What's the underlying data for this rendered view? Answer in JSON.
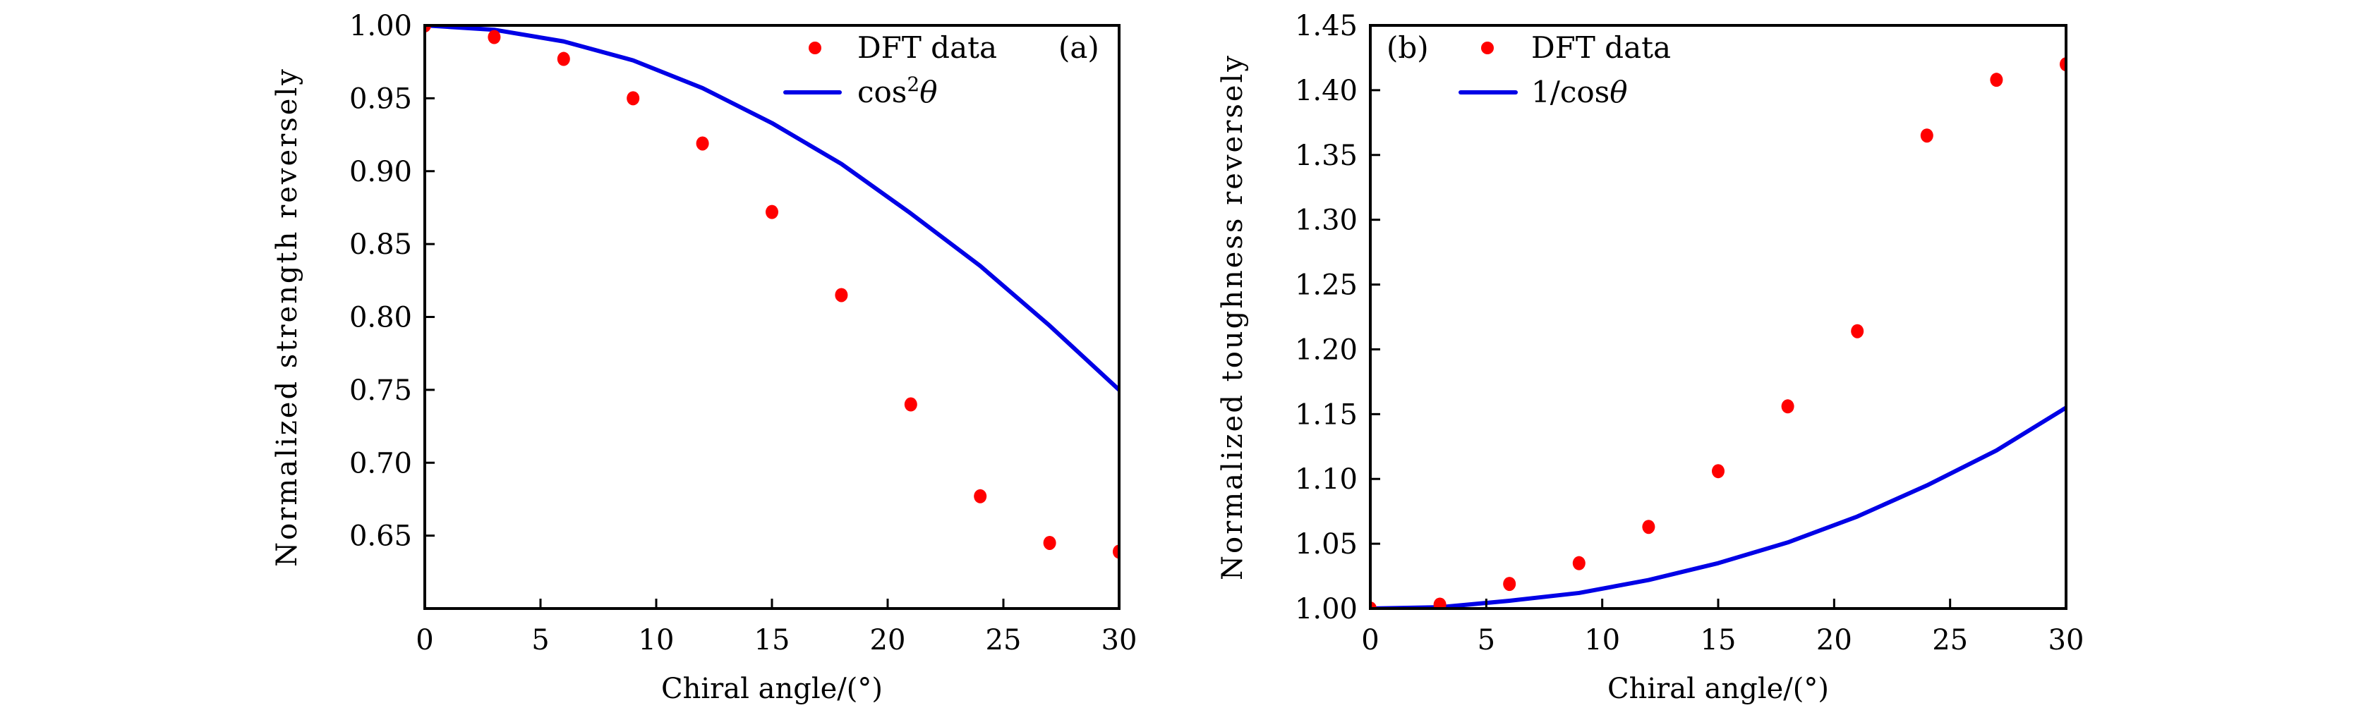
{
  "chart_data": [
    {
      "type": "scatter",
      "panel_label": "(a)",
      "xlabel": "Chiral angle/(°)",
      "ylabel": "Normalized strength reversely",
      "xlim": [
        0,
        30
      ],
      "ylim": [
        0.6,
        1.0
      ],
      "xticks": [
        0,
        5,
        10,
        15,
        20,
        25,
        30
      ],
      "xtick_labels": [
        "0",
        "5",
        "10",
        "15",
        "20",
        "25",
        "30"
      ],
      "yticks": [
        0.65,
        0.7,
        0.75,
        0.8,
        0.85,
        0.9,
        0.95,
        1.0
      ],
      "ytick_labels": [
        "0.65",
        "0.70",
        "0.75",
        "0.80",
        "0.85",
        "0.90",
        "0.95",
        "1.00"
      ],
      "grid": false,
      "legend_position": "top-right",
      "series": [
        {
          "name": "DFT data",
          "kind": "scatter",
          "color": "#ff0000",
          "x": [
            0,
            3,
            6,
            9,
            12,
            15,
            18,
            21,
            24,
            27,
            30
          ],
          "y": [
            1.0,
            0.992,
            0.977,
            0.95,
            0.919,
            0.872,
            0.815,
            0.74,
            0.677,
            0.645,
            0.639
          ]
        },
        {
          "name": "cos²θ",
          "legend_main": "cos",
          "legend_sup": "2",
          "legend_var": "θ",
          "kind": "line",
          "color": "#0000e6",
          "x": [
            0,
            3,
            6,
            9,
            12,
            15,
            18,
            21,
            24,
            27,
            30
          ],
          "y": [
            1.0,
            0.997,
            0.989,
            0.976,
            0.957,
            0.933,
            0.905,
            0.871,
            0.835,
            0.794,
            0.75
          ]
        }
      ]
    },
    {
      "type": "scatter",
      "panel_label": "(b)",
      "xlabel": "Chiral angle/(°)",
      "ylabel": "Normalized toughness reversely",
      "xlim": [
        0,
        30
      ],
      "ylim": [
        1.0,
        1.45
      ],
      "xticks": [
        0,
        5,
        10,
        15,
        20,
        25,
        30
      ],
      "xtick_labels": [
        "0",
        "5",
        "10",
        "15",
        "20",
        "25",
        "30"
      ],
      "yticks": [
        1.0,
        1.05,
        1.1,
        1.15,
        1.2,
        1.25,
        1.3,
        1.35,
        1.4,
        1.45
      ],
      "ytick_labels": [
        "1.00",
        "1.05",
        "1.10",
        "1.15",
        "1.20",
        "1.25",
        "1.30",
        "1.35",
        "1.40",
        "1.45"
      ],
      "grid": false,
      "legend_position": "top-left",
      "series": [
        {
          "name": "DFT data",
          "kind": "scatter",
          "color": "#ff0000",
          "x": [
            0,
            3,
            6,
            9,
            12,
            15,
            18,
            21,
            24,
            27,
            30
          ],
          "y": [
            1.0,
            1.003,
            1.019,
            1.035,
            1.063,
            1.106,
            1.156,
            1.214,
            1.365,
            1.408,
            1.42
          ]
        },
        {
          "name": "1/cosθ",
          "legend_main": "1/cos",
          "legend_sup": "",
          "legend_var": "θ",
          "kind": "line",
          "color": "#0000e6",
          "x": [
            0,
            3,
            6,
            9,
            12,
            15,
            18,
            21,
            24,
            27,
            30
          ],
          "y": [
            1.0,
            1.001,
            1.006,
            1.012,
            1.022,
            1.035,
            1.051,
            1.071,
            1.095,
            1.122,
            1.155
          ]
        }
      ]
    }
  ]
}
